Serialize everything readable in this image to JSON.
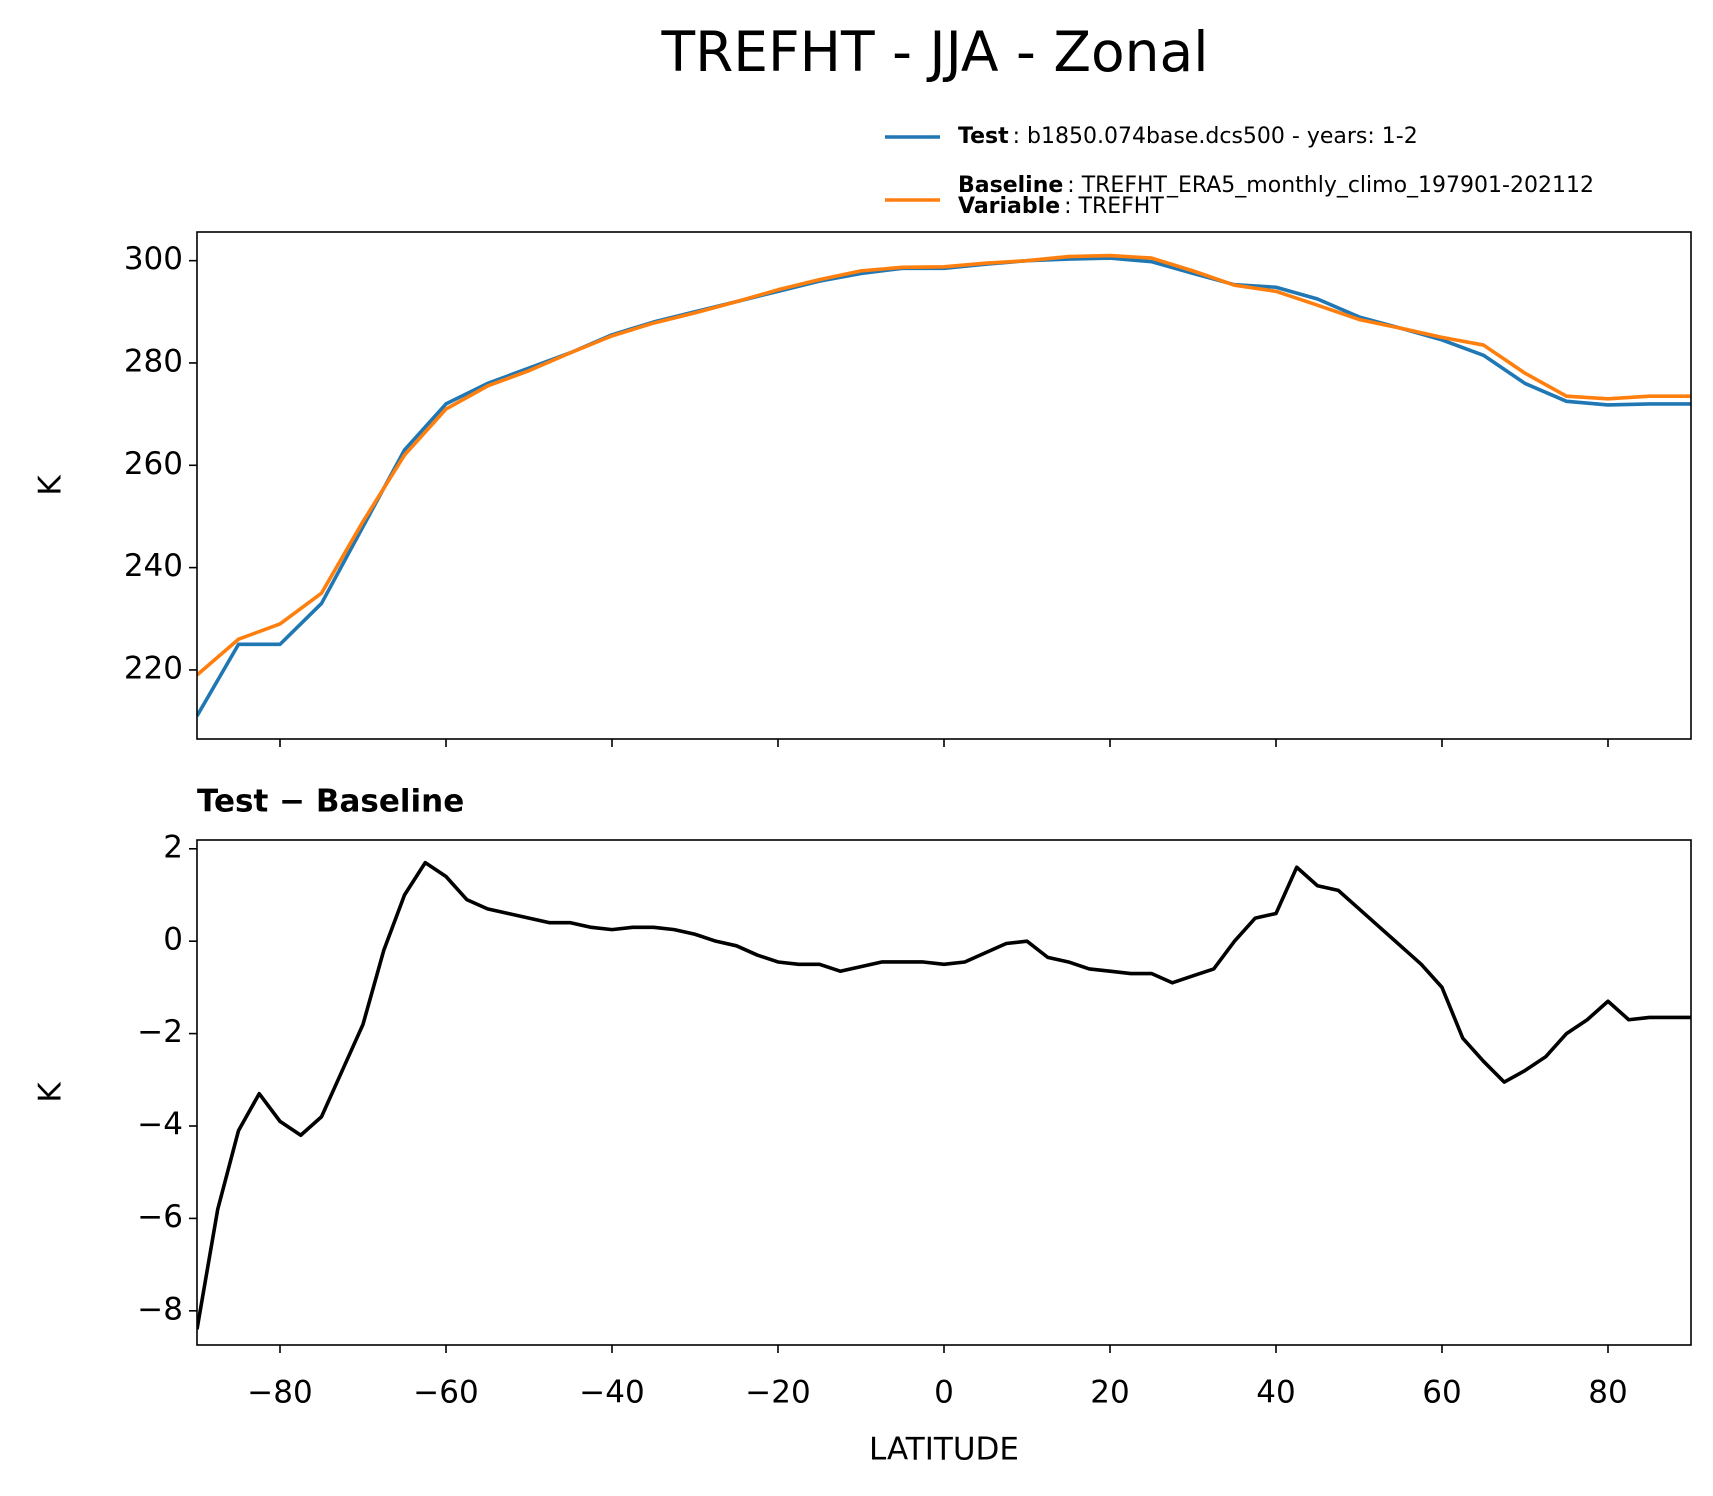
{
  "chart_data": [
    {
      "type": "line",
      "title": "TREFHT - JJA - Zonal",
      "ylabel": "K",
      "xlim": [
        -90,
        90
      ],
      "xticks": [
        -80,
        -60,
        -40,
        -20,
        0,
        20,
        40,
        60,
        80
      ],
      "ylim": [
        206.5,
        305.6
      ],
      "yticks": [
        220,
        240,
        260,
        280,
        300
      ],
      "x": [
        -90,
        -85,
        -80,
        -75,
        -70,
        -65,
        -60,
        -55,
        -50,
        -45,
        -40,
        -35,
        -30,
        -25,
        -20,
        -15,
        -10,
        -5,
        0,
        5,
        10,
        15,
        20,
        25,
        30,
        35,
        40,
        45,
        50,
        55,
        60,
        65,
        70,
        75,
        80,
        85,
        90
      ],
      "series": [
        {
          "name": "Test",
          "detail": ": b1850.074base.dcs500 - years: 1-2",
          "color": "#1f77b4",
          "values": [
            211,
            225,
            225,
            233,
            248,
            263,
            272,
            276,
            279,
            282,
            285.5,
            288,
            290,
            292,
            294,
            296,
            297.5,
            298.5,
            298.5,
            299.3,
            300,
            300.3,
            300.5,
            299.8,
            297.5,
            295.3,
            294.8,
            292.5,
            289,
            286.8,
            284.5,
            281.5,
            276,
            272.5,
            271.8,
            272,
            272
          ]
        },
        {
          "name": "Baseline",
          "detail": ": TREFHT_ERA5_monthly_climo_197901-202112",
          "color": "#ff7f0e",
          "values": [
            219,
            226,
            229,
            235,
            249,
            262,
            271,
            275.5,
            278.5,
            282,
            285.3,
            287.8,
            289.8,
            292,
            294.3,
            296.3,
            298,
            298.7,
            298.8,
            299.5,
            300,
            300.8,
            301,
            300.5,
            298,
            295.2,
            294,
            291.3,
            288.5,
            286.8,
            285,
            283.5,
            278,
            273.5,
            273,
            273.5,
            273.5
          ]
        }
      ],
      "legend_extra": {
        "name": "Variable",
        "detail": ": TREFHT"
      }
    },
    {
      "type": "line",
      "subtitle": "Test − Baseline",
      "ylabel": "K",
      "xlabel": "LATITUDE",
      "xlim": [
        -90,
        90
      ],
      "xticks": [
        {
          "value": -80,
          "label": "−80"
        },
        {
          "value": -60,
          "label": "−60"
        },
        {
          "value": -40,
          "label": "−40"
        },
        {
          "value": -20,
          "label": "−20"
        },
        0,
        20,
        40,
        60,
        80
      ],
      "ylim": [
        -8.74,
        2.19
      ],
      "yticks": [
        {
          "value": -8,
          "label": "−8"
        },
        {
          "value": -6,
          "label": "−6"
        },
        {
          "value": -4,
          "label": "−4"
        },
        {
          "value": -2,
          "label": "−2"
        },
        0,
        2
      ],
      "x": [
        -90,
        -87.5,
        -85,
        -82.5,
        -80,
        -77.5,
        -75,
        -72.5,
        -70,
        -67.5,
        -65,
        -62.5,
        -60,
        -57.5,
        -55,
        -52.5,
        -50,
        -47.5,
        -45,
        -42.5,
        -40,
        -37.5,
        -35,
        -32.5,
        -30,
        -27.5,
        -25,
        -22.5,
        -20,
        -17.5,
        -15,
        -12.5,
        -10,
        -7.5,
        -5,
        -2.5,
        0,
        2.5,
        5,
        7.5,
        10,
        12.5,
        15,
        17.5,
        20,
        22.5,
        25,
        27.5,
        30,
        32.5,
        35,
        37.5,
        40,
        42.5,
        45,
        47.5,
        50,
        52.5,
        55,
        57.5,
        60,
        62.5,
        65,
        67.5,
        70,
        72.5,
        75,
        77.5,
        80,
        82.5,
        85,
        87.5,
        90
      ],
      "series": [
        {
          "color": "#000000",
          "values": [
            -8.4,
            -5.8,
            -4.1,
            -3.3,
            -3.9,
            -4.2,
            -3.8,
            -2.8,
            -1.8,
            -0.2,
            1.0,
            1.7,
            1.4,
            0.9,
            0.7,
            0.6,
            0.5,
            0.4,
            0.4,
            0.3,
            0.25,
            0.3,
            0.3,
            0.25,
            0.15,
            0.0,
            -0.1,
            -0.3,
            -0.45,
            -0.5,
            -0.5,
            -0.65,
            -0.55,
            -0.45,
            -0.45,
            -0.45,
            -0.5,
            -0.45,
            -0.25,
            -0.05,
            0.0,
            -0.35,
            -0.45,
            -0.6,
            -0.65,
            -0.7,
            -0.7,
            -0.9,
            -0.75,
            -0.6,
            0.0,
            0.5,
            0.6,
            1.6,
            1.2,
            1.1,
            0.7,
            0.3,
            -0.1,
            -0.5,
            -1.0,
            -2.1,
            -2.6,
            -3.05,
            -2.8,
            -2.5,
            -2.0,
            -1.7,
            -1.3,
            -1.7,
            -1.65,
            -1.65,
            -1.65
          ]
        }
      ]
    }
  ]
}
